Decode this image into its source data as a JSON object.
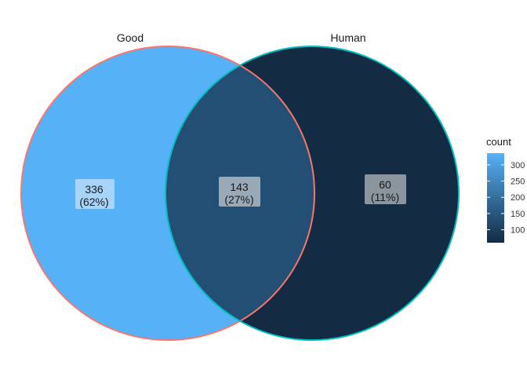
{
  "chart_data": {
    "type": "venn",
    "sets": [
      {
        "name": "Good",
        "outline_color": "#f8766d"
      },
      {
        "name": "Human",
        "outline_color": "#00bfc4"
      }
    ],
    "regions": [
      {
        "id": "good-only",
        "sets": [
          "Good"
        ],
        "count": 336,
        "percent_label": "(62%)",
        "fill": "#56b1f7",
        "label_bg": "#a8d4f9"
      },
      {
        "id": "both",
        "sets": [
          "Good",
          "Human"
        ],
        "count": 143,
        "percent_label": "(27%)",
        "fill": "#234f75",
        "label_bg": "#9aa9b7"
      },
      {
        "id": "human-only",
        "sets": [
          "Human"
        ],
        "count": 60,
        "percent_label": "(11%)",
        "fill": "#132b43",
        "label_bg": "#8b959e"
      }
    ],
    "legend": {
      "title": "count",
      "placement": "right",
      "min": 60,
      "max": 336,
      "low_color": "#132b43",
      "high_color": "#56b1f7",
      "ticks": [
        100,
        150,
        200,
        250,
        300
      ]
    }
  }
}
